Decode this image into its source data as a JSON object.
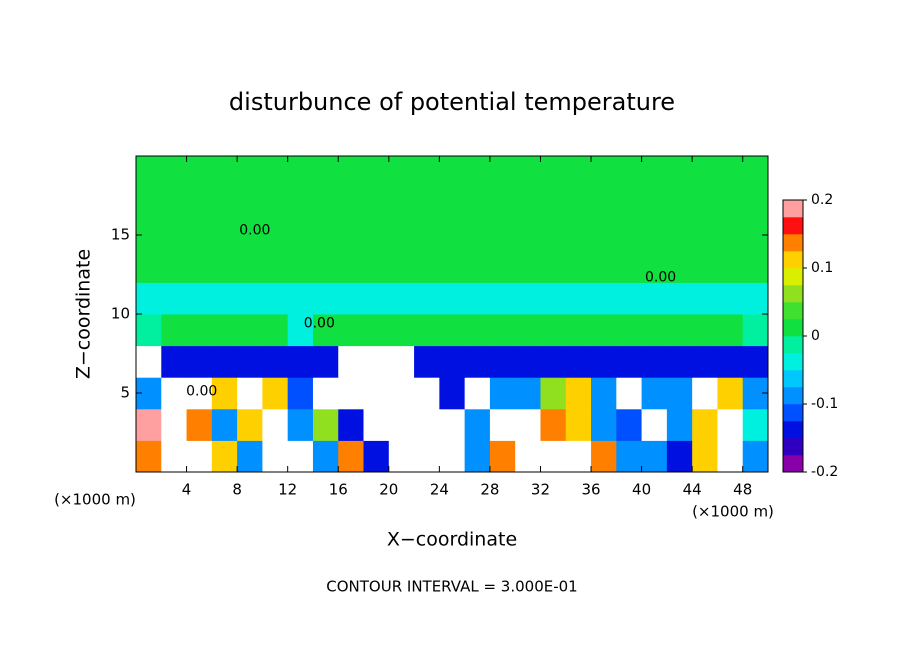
{
  "chart_data": {
    "type": "heatmap",
    "title": "disturbunce of potential temperature",
    "x_label": "X−coordinate",
    "y_label": "Z−coordinate",
    "x_unit": "(×1000 m)",
    "x_unit_right": "(×1000 m)",
    "footer": "CONTOUR INTERVAL = 3.000E-01",
    "xlim": [
      0,
      50
    ],
    "xticks": [
      4,
      8,
      12,
      16,
      20,
      24,
      28,
      32,
      36,
      40,
      44,
      48
    ],
    "ylim": [
      0,
      20
    ],
    "yticks": [
      5,
      10,
      15
    ],
    "colorbar": {
      "clim": [
        -0.2,
        0.2
      ],
      "ticks": [
        -0.2,
        -0.1,
        0,
        0.1,
        0.2
      ],
      "colors": [
        "#8a00a8",
        "#3000c0",
        "#0010e0",
        "#0050ff",
        "#0090ff",
        "#00c8ff",
        "#00f0e0",
        "#00f0a0",
        "#10e040",
        "#40e030",
        "#90e020",
        "#d8f000",
        "#ffd000",
        "#ff8000",
        "#ff1010",
        "#ffa0a0"
      ],
      "out_of_range_color": "#ffffff"
    },
    "field": {
      "values": [
        [
          0.15,
          -0.3,
          -0.3,
          0.1,
          -0.1,
          -0.3,
          -0.3,
          -0.1,
          0.15,
          -0.15,
          -0.3,
          -0.3,
          -0.3,
          -0.1,
          0.15,
          -0.3,
          -0.3,
          -0.3,
          0.15,
          -0.1,
          -0.1,
          -0.15,
          0.12,
          -0.3,
          -0.1
        ],
        [
          0.18,
          -0.3,
          0.15,
          -0.1,
          0.12,
          -0.3,
          -0.1,
          0.05,
          -0.15,
          -0.3,
          -0.3,
          -0.3,
          -0.3,
          -0.1,
          -0.3,
          -0.3,
          0.15,
          0.12,
          -0.1,
          -0.12,
          -0.3,
          -0.1,
          0.12,
          -0.3,
          -0.05
        ],
        [
          -0.1,
          -0.3,
          -0.3,
          0.12,
          -0.3,
          0.1,
          -0.12,
          -0.3,
          -0.3,
          -0.3,
          -0.3,
          -0.3,
          -0.15,
          -0.3,
          -0.1,
          -0.1,
          0.05,
          0.1,
          -0.1,
          -0.3,
          -0.1,
          -0.1,
          -0.3,
          0.1,
          -0.1
        ],
        [
          -0.3,
          -0.15,
          -0.15,
          -0.15,
          -0.15,
          -0.15,
          -0.15,
          -0.15,
          -0.3,
          -0.3,
          -0.3,
          -0.15,
          -0.15,
          -0.15,
          -0.15,
          -0.15,
          -0.15,
          -0.15,
          -0.15,
          -0.15,
          -0.15,
          -0.15,
          -0.15,
          -0.15,
          -0.15
        ],
        [
          -0.01,
          0.01,
          0.01,
          0.01,
          0.01,
          0.01,
          -0.03,
          0.01,
          0.01,
          0.01,
          0.01,
          0.01,
          0.01,
          0.01,
          0.01,
          0.01,
          0.01,
          0.01,
          0.01,
          0.01,
          0.01,
          0.01,
          0.01,
          0.01,
          -0.01
        ],
        [
          -0.04,
          -0.03,
          -0.04,
          -0.04,
          -0.03,
          -0.04,
          -0.04,
          -0.03,
          -0.04,
          -0.04,
          -0.04,
          -0.04,
          -0.03,
          -0.04,
          -0.04,
          -0.04,
          -0.03,
          -0.04,
          -0.04,
          -0.04,
          -0.03,
          -0.04,
          -0.04,
          -0.04,
          -0.03
        ],
        [
          0.01,
          0.01,
          0.01,
          0.01,
          0.01,
          0.01,
          0.01,
          0.01,
          0.01,
          0.01,
          0.01,
          0.01,
          0.01,
          0.01,
          0.01,
          0.01,
          0.01,
          0.01,
          0.01,
          0.01,
          0.01,
          0.01,
          0.01,
          0.01,
          0.01
        ],
        [
          0.01,
          0.01,
          0.01,
          0.01,
          0.01,
          0.01,
          0.01,
          0.01,
          0.01,
          0.01,
          0.01,
          0.01,
          0.01,
          0.01,
          0.01,
          0.01,
          0.01,
          0.01,
          0.01,
          0.01,
          0.01,
          0.01,
          0.01,
          0.01,
          0.01
        ],
        [
          0.01,
          0.01,
          0.01,
          0.01,
          0.01,
          0.01,
          0.01,
          0.01,
          0.01,
          0.01,
          0.01,
          0.01,
          0.01,
          0.01,
          0.01,
          0.01,
          0.01,
          0.01,
          0.01,
          0.01,
          0.01,
          0.01,
          0.01,
          0.01,
          0.01
        ],
        [
          0.01,
          0.01,
          0.01,
          0.01,
          0.01,
          0.01,
          0.01,
          0.01,
          0.01,
          0.01,
          0.01,
          0.01,
          0.01,
          0.01,
          0.01,
          0.01,
          0.01,
          0.01,
          0.01,
          0.01,
          0.01,
          0.01,
          0.01,
          0.01,
          0.01
        ]
      ]
    },
    "contour_labels": [
      {
        "text": "0.00",
        "x": 14.5,
        "y": 9.4
      },
      {
        "text": "0.00",
        "x": 41.5,
        "y": 12.3
      },
      {
        "text": "0.00",
        "x": 5.2,
        "y": 5.1
      },
      {
        "text": "0.00",
        "x": 9.4,
        "y": 15.3
      }
    ]
  }
}
